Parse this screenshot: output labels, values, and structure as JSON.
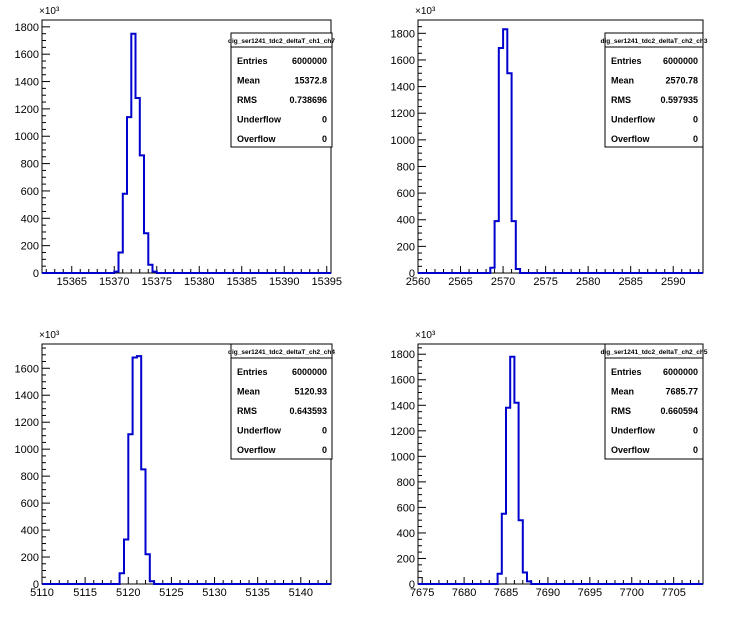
{
  "chart_data": [
    {
      "type": "histogram",
      "y_multiplier_label": "×10³",
      "stats": {
        "title": "dig_ser1241_tdc2_deltaT_ch1_ch7",
        "rows": [
          {
            "label": "Entries",
            "value": "6000000"
          },
          {
            "label": "Mean",
            "value": "15372.8"
          },
          {
            "label": "RMS",
            "value": "0.738696"
          },
          {
            "label": "Underflow",
            "value": "0"
          },
          {
            "label": "Overflow",
            "value": "0"
          }
        ]
      },
      "xlim": [
        15361.5,
        15395.5
      ],
      "ylim": [
        0,
        1850
      ],
      "x_ticks": [
        15365,
        15370,
        15375,
        15380,
        15385,
        15390,
        15395
      ],
      "y_ticks": [
        0,
        200,
        400,
        600,
        800,
        1000,
        1200,
        1400,
        1600,
        1800
      ],
      "bin_width": 0.5,
      "bins_start": 15369.5,
      "values": [
        0,
        10,
        150,
        580,
        1140,
        1750,
        1280,
        860,
        290,
        60,
        10,
        0
      ],
      "grid": false,
      "color": "#0000cc"
    },
    {
      "type": "histogram",
      "y_multiplier_label": "×10³",
      "stats": {
        "title": "dig_ser1241_tdc2_deltaT_ch2_ch3",
        "rows": [
          {
            "label": "Entries",
            "value": "6000000"
          },
          {
            "label": "Mean",
            "value": "2570.78"
          },
          {
            "label": "RMS",
            "value": "0.597935"
          },
          {
            "label": "Underflow",
            "value": "0"
          },
          {
            "label": "Overflow",
            "value": "0"
          }
        ]
      },
      "xlim": [
        2560,
        2593.5
      ],
      "ylim": [
        0,
        1900
      ],
      "x_ticks": [
        2560,
        2565,
        2570,
        2575,
        2580,
        2585,
        2590
      ],
      "y_ticks": [
        0,
        200,
        400,
        600,
        800,
        1000,
        1200,
        1400,
        1600,
        1800
      ],
      "bin_width": 0.5,
      "bins_start": 2568.5,
      "values": [
        40,
        390,
        1690,
        1830,
        1500,
        390,
        30,
        0
      ],
      "grid": false,
      "color": "#0000cc"
    },
    {
      "type": "histogram",
      "y_multiplier_label": "×10³",
      "stats": {
        "title": "dig_ser1241_tdc2_deltaT_ch2_ch4",
        "rows": [
          {
            "label": "Entries",
            "value": "6000000"
          },
          {
            "label": "Mean",
            "value": "5120.93"
          },
          {
            "label": "RMS",
            "value": "0.643593"
          },
          {
            "label": "Underflow",
            "value": "0"
          },
          {
            "label": "Overflow",
            "value": "0"
          }
        ]
      },
      "xlim": [
        5110,
        5143.5
      ],
      "ylim": [
        0,
        1780
      ],
      "x_ticks": [
        5110,
        5115,
        5120,
        5125,
        5130,
        5135,
        5140
      ],
      "y_ticks": [
        0,
        200,
        400,
        600,
        800,
        1000,
        1200,
        1400,
        1600
      ],
      "bin_width": 0.5,
      "bins_start": 5118.5,
      "values": [
        0,
        80,
        330,
        1110,
        1680,
        1690,
        850,
        220,
        20,
        0
      ],
      "grid": false,
      "color": "#0000cc"
    },
    {
      "type": "histogram",
      "y_multiplier_label": "×10³",
      "stats": {
        "title": "dig_ser1241_tdc2_deltaT_ch2_ch5",
        "rows": [
          {
            "label": "Entries",
            "value": "6000000"
          },
          {
            "label": "Mean",
            "value": "7685.77"
          },
          {
            "label": "RMS",
            "value": "0.660594"
          },
          {
            "label": "Underflow",
            "value": "0"
          },
          {
            "label": "Overflow",
            "value": "0"
          }
        ]
      },
      "xlim": [
        7674.5,
        7708.5
      ],
      "ylim": [
        0,
        1880
      ],
      "x_ticks": [
        7675,
        7680,
        7685,
        7690,
        7695,
        7700,
        7705
      ],
      "y_ticks": [
        0,
        200,
        400,
        600,
        800,
        1000,
        1200,
        1400,
        1600,
        1800
      ],
      "bin_width": 0.5,
      "bins_start": 7683.5,
      "values": [
        0,
        80,
        550,
        1380,
        1780,
        1420,
        500,
        90,
        20,
        0
      ],
      "grid": false,
      "color": "#0000cc"
    }
  ]
}
